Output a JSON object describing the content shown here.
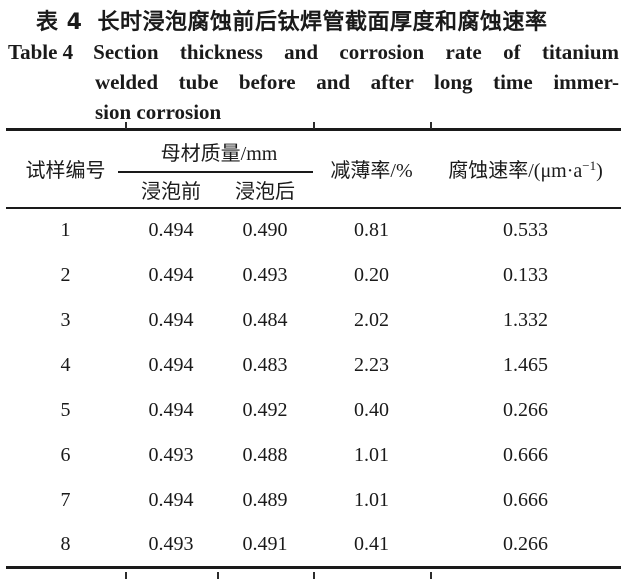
{
  "title": {
    "zh_label": "表 4",
    "zh_text": "长时浸泡腐蚀前后钛焊管截面厚度和腐蚀速率",
    "en_label": "Table 4",
    "en_line1": "Section thickness and corrosion rate of titanium",
    "en_line2": "welded tube before and after long time immer-",
    "en_line3": "sion corrosion"
  },
  "table": {
    "header": {
      "col_sample": "试样编号",
      "col_group": "母材质量/mm",
      "col_before": "浸泡前",
      "col_after": "浸泡后",
      "col_thinning": "减薄率/%",
      "col_rate_prefix": "腐蚀速率/(μm·a",
      "col_rate_sup": "−1",
      "col_rate_suffix": ")"
    },
    "rows": [
      [
        "1",
        "0.494",
        "0.490",
        "0.81",
        "0.533"
      ],
      [
        "2",
        "0.494",
        "0.493",
        "0.20",
        "0.133"
      ],
      [
        "3",
        "0.494",
        "0.484",
        "2.02",
        "1.332"
      ],
      [
        "4",
        "0.494",
        "0.483",
        "2.23",
        "1.465"
      ],
      [
        "5",
        "0.494",
        "0.492",
        "0.40",
        "0.266"
      ],
      [
        "6",
        "0.493",
        "0.488",
        "1.01",
        "0.666"
      ],
      [
        "7",
        "0.494",
        "0.489",
        "1.01",
        "0.666"
      ],
      [
        "8",
        "0.493",
        "0.491",
        "0.41",
        "0.266"
      ]
    ]
  },
  "colors": {
    "text": "#1a1a1a",
    "rule": "#1a1a1a",
    "background": "#ffffff"
  }
}
